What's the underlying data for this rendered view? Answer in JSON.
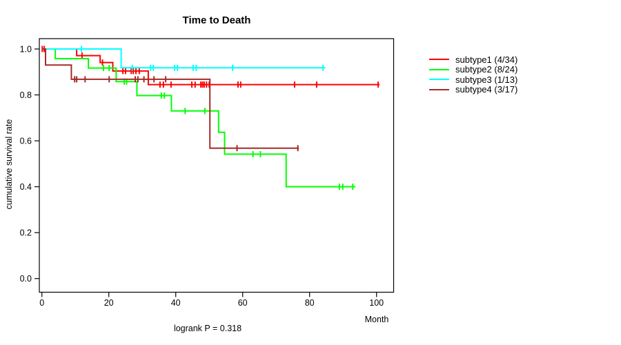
{
  "chart_data": {
    "type": "line",
    "subtype": "kaplan-meier-step",
    "title": "Time to Death",
    "xlabel": "Month",
    "ylabel": "cumulative survival rate",
    "footnote": "logrank P = 0.318",
    "x_ticks": [
      0,
      20,
      40,
      60,
      80,
      100
    ],
    "y_ticks": [
      0.0,
      0.2,
      0.4,
      0.6,
      0.8,
      1.0
    ],
    "x_range": [
      0,
      106
    ],
    "y_range": [
      0,
      1
    ],
    "grid": "off",
    "legend_position": "right-outside",
    "series": [
      {
        "name": "subtype1",
        "legend_label": "subtype1 (4/34)",
        "color": "#ff0000",
        "events": [
          [
            10.4,
            0.971
          ],
          [
            17.4,
            0.941
          ],
          [
            21.2,
            0.904
          ],
          [
            31.8,
            0.845
          ]
        ],
        "end_month": 100.9,
        "censors": [
          [
            0.1,
            1.0
          ],
          [
            0.7,
            1.0
          ],
          [
            12.0,
            0.971
          ],
          [
            18.1,
            0.941
          ],
          [
            24.2,
            0.904
          ],
          [
            25.0,
            0.904
          ],
          [
            26.7,
            0.904
          ],
          [
            27.3,
            0.904
          ],
          [
            28.1,
            0.904
          ],
          [
            29.1,
            0.904
          ],
          [
            35.3,
            0.845
          ],
          [
            36.3,
            0.845
          ],
          [
            38.6,
            0.845
          ],
          [
            44.8,
            0.845
          ],
          [
            45.8,
            0.845
          ],
          [
            47.5,
            0.845
          ],
          [
            48.0,
            0.845
          ],
          [
            48.5,
            0.845
          ],
          [
            49.2,
            0.845
          ],
          [
            50.0,
            0.845
          ],
          [
            58.6,
            0.845
          ],
          [
            59.4,
            0.845
          ],
          [
            75.5,
            0.845
          ],
          [
            82.1,
            0.845
          ],
          [
            100.5,
            0.845
          ]
        ]
      },
      {
        "name": "subtype2",
        "legend_label": "subtype2 (8/24)",
        "color": "#00ff00",
        "events": [
          [
            4.0,
            0.958
          ],
          [
            13.9,
            0.917
          ],
          [
            22.2,
            0.858
          ],
          [
            28.4,
            0.797
          ],
          [
            38.7,
            0.73
          ],
          [
            52.8,
            0.637
          ],
          [
            54.6,
            0.542
          ],
          [
            73.0,
            0.4
          ]
        ],
        "end_month": 93.7,
        "censors": [
          [
            18.4,
            0.917
          ],
          [
            20.1,
            0.917
          ],
          [
            24.6,
            0.858
          ],
          [
            25.3,
            0.858
          ],
          [
            35.7,
            0.797
          ],
          [
            36.6,
            0.797
          ],
          [
            42.8,
            0.73
          ],
          [
            48.7,
            0.73
          ],
          [
            63.1,
            0.542
          ],
          [
            65.3,
            0.542
          ],
          [
            88.9,
            0.4
          ],
          [
            89.9,
            0.4
          ],
          [
            92.9,
            0.4
          ]
        ]
      },
      {
        "name": "subtype3",
        "legend_label": "subtype3 (1/13)",
        "color": "#00ffff",
        "events": [
          [
            23.7,
            0.918
          ]
        ],
        "end_month": 84.7,
        "censors": [
          [
            11.8,
            1.0
          ],
          [
            27.0,
            0.918
          ],
          [
            32.5,
            0.918
          ],
          [
            33.3,
            0.918
          ],
          [
            39.7,
            0.918
          ],
          [
            40.5,
            0.918
          ],
          [
            45.2,
            0.918
          ],
          [
            46.1,
            0.918
          ],
          [
            57.0,
            0.918
          ],
          [
            84.0,
            0.918
          ]
        ]
      },
      {
        "name": "subtype4",
        "legend_label": "subtype4 (3/17)",
        "color": "#a52a2a",
        "events": [
          [
            1.1,
            0.93
          ],
          [
            8.8,
            0.868
          ],
          [
            50.2,
            0.568
          ]
        ],
        "end_month": 76.8,
        "censors": [
          [
            9.8,
            0.868
          ],
          [
            10.4,
            0.868
          ],
          [
            12.9,
            0.868
          ],
          [
            20.1,
            0.868
          ],
          [
            27.9,
            0.868
          ],
          [
            28.7,
            0.868
          ],
          [
            30.5,
            0.868
          ],
          [
            33.5,
            0.868
          ],
          [
            37.0,
            0.868
          ],
          [
            58.3,
            0.568
          ],
          [
            76.5,
            0.568
          ]
        ]
      }
    ]
  }
}
